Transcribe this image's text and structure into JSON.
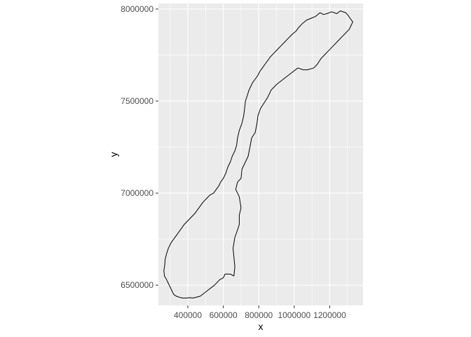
{
  "chart_data": {
    "type": "map",
    "title": "",
    "xlabel": "x",
    "ylabel": "y",
    "xlim": [
      234000,
      1388000
    ],
    "ylim": [
      6390000,
      8030000
    ],
    "x_ticks": [
      400000,
      600000,
      800000,
      1000000,
      1200000
    ],
    "x_tick_labels": [
      "400000",
      "600000",
      "800000",
      "1000000",
      "1200000"
    ],
    "y_ticks": [
      6500000,
      7000000,
      7500000,
      8000000
    ],
    "y_tick_labels": [
      "6500000",
      "7000000",
      "7500000",
      "8000000"
    ],
    "grid": true,
    "colors": {
      "panel_background": "#ebebeb",
      "grid_major": "#ffffff",
      "outline": "#000000",
      "tick_text": "#4d4d4d",
      "tick_mark": "#333333"
    },
    "series": [
      {
        "geometry": "polygon",
        "x": [
          430000,
          470000,
          510000,
          550000,
          580000,
          600000,
          610000,
          640000,
          660000,
          665000,
          660000,
          655000,
          665000,
          680000,
          690000,
          690000,
          700000,
          690000,
          670000,
          680000,
          700000,
          705000,
          720000,
          740000,
          750000,
          760000,
          780000,
          790000,
          795000,
          810000,
          830000,
          850000,
          870000,
          900000,
          940000,
          980000,
          1020000,
          1050000,
          1075000,
          1110000,
          1130000,
          1150000,
          1170000,
          1190000,
          1220000,
          1250000,
          1270000,
          1290000,
          1310000,
          1320000,
          1330000,
          1315000,
          1300000,
          1290000,
          1260000,
          1240000,
          1210000,
          1185000,
          1165000,
          1145000,
          1120000,
          1095000,
          1070000,
          1045000,
          1025000,
          1010000,
          985000,
          965000,
          945000,
          925000,
          905000,
          885000,
          865000,
          850000,
          835000,
          820000,
          805000,
          795000,
          780000,
          765000,
          755000,
          745000,
          735000,
          725000,
          720000,
          715000,
          705000,
          690000,
          680000,
          675000,
          665000,
          650000,
          640000,
          625000,
          615000,
          600000,
          585000,
          575000,
          560000,
          545000,
          525000,
          505000,
          485000,
          470000,
          455000,
          440000,
          420000,
          400000,
          380000,
          365000,
          350000,
          335000,
          320000,
          305000,
          290000,
          280000,
          272000,
          270000,
          265000,
          268000,
          280000,
          290000,
          300000,
          310000,
          320000,
          335000,
          350000,
          370000,
          390000,
          410000,
          430000
        ],
        "y": [
          6430000,
          6440000,
          6470000,
          6500000,
          6530000,
          6540000,
          6560000,
          6560000,
          6550000,
          6600000,
          6650000,
          6700000,
          6760000,
          6800000,
          6830000,
          6880000,
          6920000,
          6980000,
          7020000,
          7060000,
          7080000,
          7130000,
          7160000,
          7200000,
          7250000,
          7300000,
          7330000,
          7380000,
          7420000,
          7460000,
          7490000,
          7520000,
          7560000,
          7590000,
          7620000,
          7650000,
          7680000,
          7670000,
          7670000,
          7680000,
          7700000,
          7730000,
          7750000,
          7770000,
          7800000,
          7830000,
          7850000,
          7870000,
          7890000,
          7910000,
          7930000,
          7950000,
          7970000,
          7980000,
          7990000,
          7975000,
          7985000,
          7975000,
          7970000,
          7980000,
          7960000,
          7950000,
          7940000,
          7920000,
          7900000,
          7880000,
          7860000,
          7840000,
          7820000,
          7800000,
          7780000,
          7760000,
          7740000,
          7720000,
          7700000,
          7680000,
          7660000,
          7640000,
          7620000,
          7600000,
          7580000,
          7560000,
          7530000,
          7500000,
          7460000,
          7420000,
          7380000,
          7340000,
          7300000,
          7260000,
          7230000,
          7200000,
          7170000,
          7140000,
          7110000,
          7080000,
          7060000,
          7040000,
          7020000,
          7000000,
          6990000,
          6970000,
          6950000,
          6930000,
          6910000,
          6890000,
          6870000,
          6850000,
          6830000,
          6810000,
          6790000,
          6770000,
          6750000,
          6730000,
          6700000,
          6670000,
          6640000,
          6610000,
          6580000,
          6550000,
          6530000,
          6510000,
          6490000,
          6470000,
          6450000,
          6440000,
          6435000,
          6430000,
          6430000,
          6432000,
          6430000
        ]
      }
    ]
  }
}
